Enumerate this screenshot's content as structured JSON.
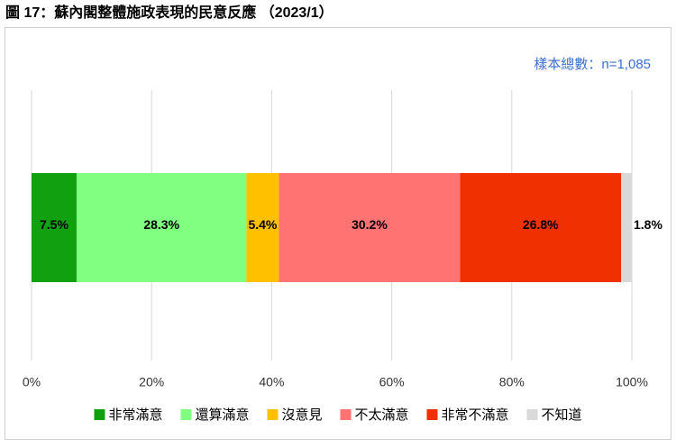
{
  "chart_data": {
    "type": "bar",
    "orientation": "horizontal",
    "stacked": true,
    "title": "圖 17：蘇內閣整體施政表現的民意反應 （2023/1）",
    "note": "樣本總數：n=1,085",
    "categories": [
      null
    ],
    "series": [
      {
        "name": "非常滿意",
        "color": "#10a010",
        "values": [
          7.5
        ],
        "value_labels": [
          "7.5%"
        ]
      },
      {
        "name": "還算滿意",
        "color": "#80ff80",
        "values": [
          28.3
        ],
        "value_labels": [
          "28.3%"
        ]
      },
      {
        "name": "沒意見",
        "color": "#ffc000",
        "values": [
          5.4
        ],
        "value_labels": [
          "5.4%"
        ]
      },
      {
        "name": "不太滿意",
        "color": "#ff7373",
        "values": [
          30.2
        ],
        "value_labels": [
          "30.2%"
        ]
      },
      {
        "name": "非常不滿意",
        "color": "#f03000",
        "values": [
          26.8
        ],
        "value_labels": [
          "26.8%"
        ]
      },
      {
        "name": "不知道",
        "color": "#d9d9d9",
        "values": [
          1.8
        ],
        "value_labels": [
          "1.8%"
        ]
      }
    ],
    "xlim": [
      0,
      100
    ],
    "xticks": [
      {
        "value": 0,
        "label": "0%"
      },
      {
        "value": 20,
        "label": "20%"
      },
      {
        "value": 40,
        "label": "40%"
      },
      {
        "value": 60,
        "label": "60%"
      },
      {
        "value": 80,
        "label": "80%"
      },
      {
        "value": 100,
        "label": "100%"
      }
    ],
    "grid": true,
    "legend": "bottom"
  }
}
